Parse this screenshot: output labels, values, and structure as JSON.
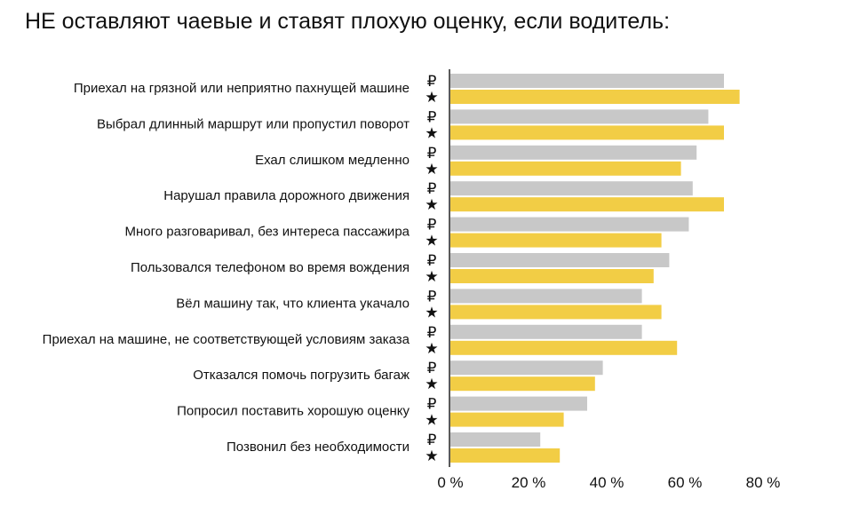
{
  "chart_data": {
    "type": "bar",
    "orientation": "horizontal",
    "title": "НЕ оставляют чаевые и ставят плохую оценку, если водитель:",
    "categories": [
      "Приехал на грязной или неприятно пахнущей машине",
      "Выбрал длинный маршрут или пропустил поворот",
      "Ехал слишком медленно",
      "Нарушал правила дорожного движения",
      "Много разговаривал, без интереса пассажира",
      "Пользовался телефоном во время вождения",
      "Вёл машину так, что клиента укачало",
      "Приехал на машине, не соответствующей условиям заказа",
      "Отказался помочь погрузить багаж",
      "Попросил поставить хорошую оценку",
      "Позвонил без необходимости"
    ],
    "series": [
      {
        "name": "₽",
        "icon": "ruble-icon",
        "color": "#c8c8c8",
        "values": [
          70,
          66,
          63,
          62,
          61,
          56,
          49,
          49,
          39,
          35,
          23
        ]
      },
      {
        "name": "★",
        "icon": "star-icon",
        "color": "#f2cd45",
        "values": [
          74,
          70,
          59,
          70,
          54,
          52,
          54,
          58,
          37,
          29,
          28
        ]
      }
    ],
    "xlim": [
      0,
      80
    ],
    "xticks": [
      0,
      20,
      40,
      60,
      80
    ],
    "xtick_labels": [
      "0 %",
      "20 %",
      "40 %",
      "60 %",
      "80 %"
    ],
    "xlabel": "",
    "ylabel": "",
    "grid": false,
    "legend": "none"
  }
}
